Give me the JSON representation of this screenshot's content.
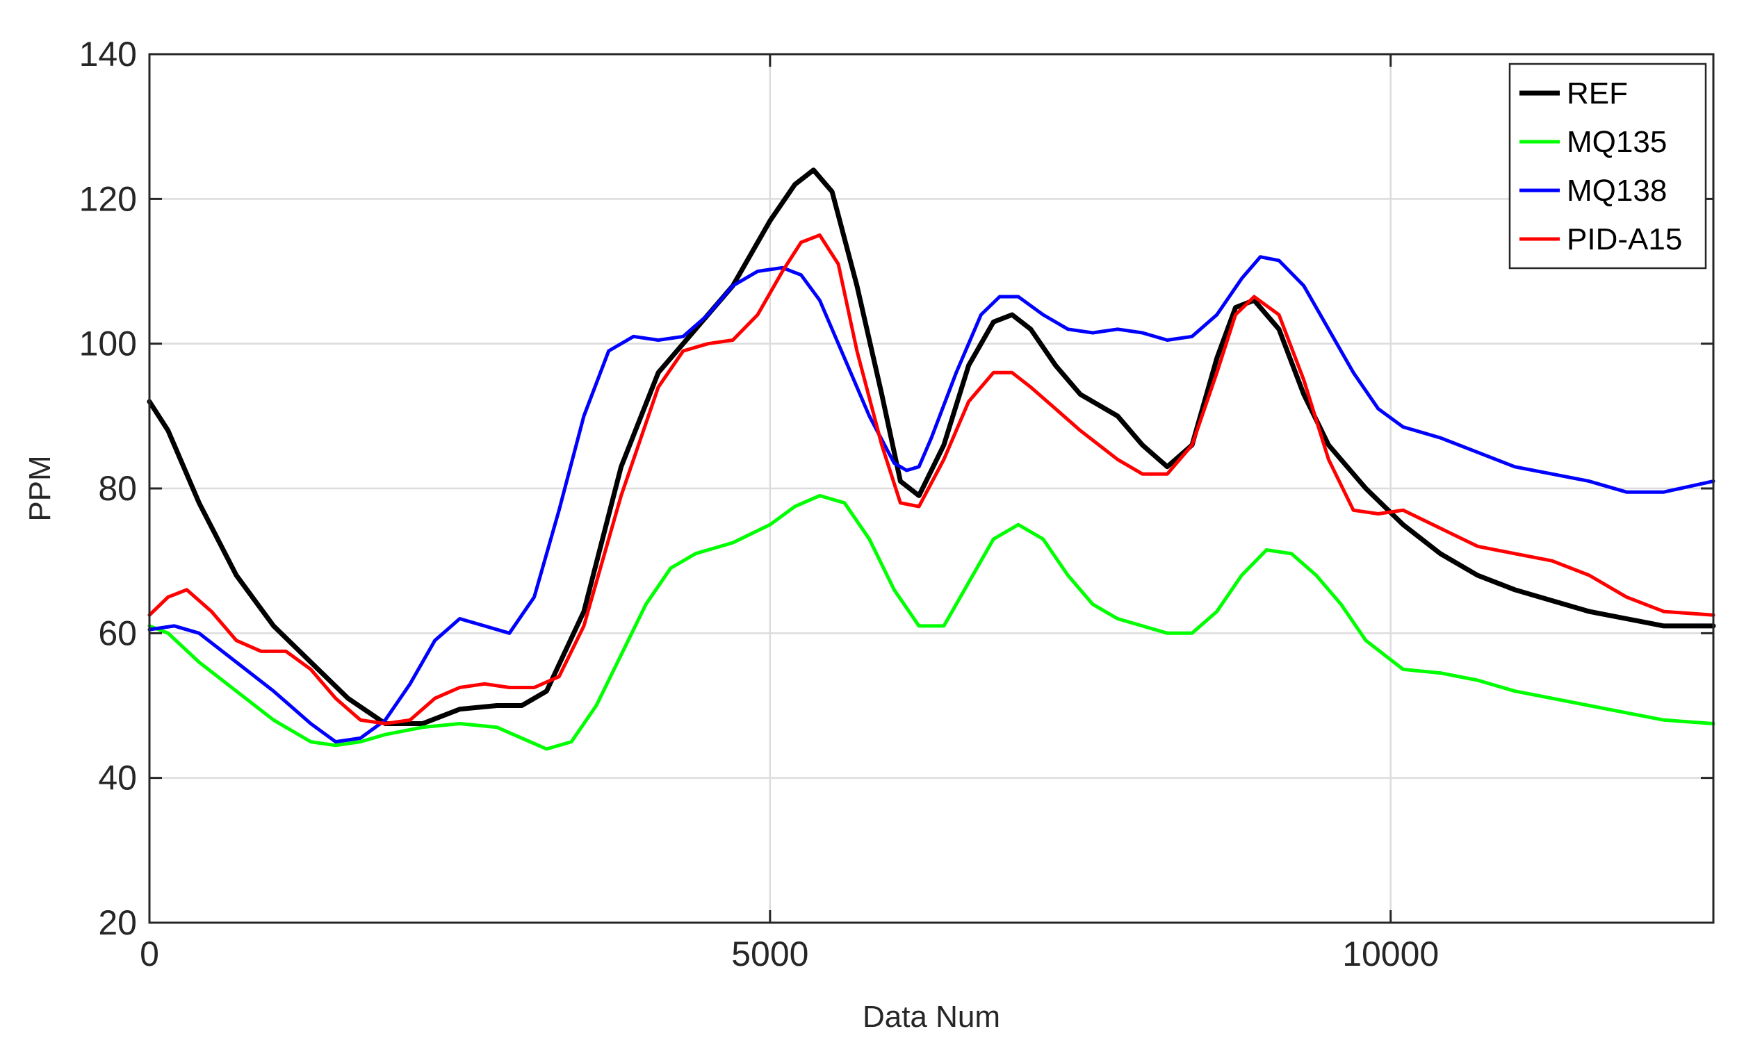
{
  "chart_data": {
    "type": "line",
    "title": "",
    "xlabel": "Data Num",
    "ylabel": "PPM",
    "xlim": [
      0,
      12600
    ],
    "ylim": [
      20,
      140
    ],
    "xticks": [
      0,
      5000,
      10000
    ],
    "yticks": [
      20,
      40,
      60,
      80,
      100,
      120,
      140
    ],
    "xtick_labels": [
      "0",
      "5000",
      "10000"
    ],
    "ytick_labels": [
      "20",
      "40",
      "60",
      "80",
      "100",
      "120",
      "140"
    ],
    "grid": true,
    "legend_position": "top-right",
    "series": [
      {
        "name": "REF",
        "color": "#000000",
        "x": [
          0,
          150,
          400,
          700,
          1000,
          1300,
          1600,
          1900,
          2200,
          2500,
          2800,
          3000,
          3200,
          3500,
          3800,
          4100,
          4400,
          4700,
          5000,
          5200,
          5350,
          5500,
          5700,
          5900,
          6050,
          6200,
          6400,
          6600,
          6800,
          6950,
          7100,
          7300,
          7500,
          7800,
          8000,
          8200,
          8400,
          8600,
          8750,
          8900,
          9100,
          9300,
          9500,
          9800,
          10100,
          10400,
          10700,
          11000,
          11300,
          11600,
          11900,
          12200,
          12600
        ],
        "y": [
          92,
          88,
          78,
          68,
          61,
          56,
          51,
          47.5,
          47.5,
          49.5,
          50,
          50,
          52,
          63,
          83,
          96,
          102,
          108,
          117,
          122,
          124,
          121,
          108,
          93,
          81,
          79,
          86,
          97,
          103,
          104,
          102,
          97,
          93,
          90,
          86,
          83,
          86,
          98,
          105,
          106,
          102,
          93,
          86,
          80,
          75,
          71,
          68,
          66,
          64.5,
          63,
          62,
          61,
          61
        ]
      },
      {
        "name": "MQ135",
        "color": "#00ff00",
        "x": [
          0,
          150,
          400,
          700,
          1000,
          1300,
          1500,
          1700,
          1900,
          2200,
          2500,
          2800,
          3000,
          3200,
          3400,
          3600,
          3800,
          4000,
          4200,
          4400,
          4700,
          5000,
          5200,
          5400,
          5600,
          5800,
          6000,
          6200,
          6400,
          6600,
          6800,
          7000,
          7200,
          7400,
          7600,
          7800,
          8000,
          8200,
          8400,
          8600,
          8800,
          9000,
          9200,
          9400,
          9600,
          9800,
          10100,
          10400,
          10700,
          11000,
          11300,
          11600,
          11900,
          12200,
          12600
        ],
        "y": [
          61,
          60,
          56,
          52,
          48,
          45,
          44.5,
          45,
          46,
          47,
          47.5,
          47,
          45.5,
          44,
          45,
          50,
          57,
          64,
          69,
          71,
          72.5,
          75,
          77.5,
          79,
          78,
          73,
          66,
          61,
          61,
          67,
          73,
          75,
          73,
          68,
          64,
          62,
          61,
          60,
          60,
          63,
          68,
          71.5,
          71,
          68,
          64,
          59,
          55,
          54.5,
          53.5,
          52,
          51,
          50,
          49,
          48,
          47.5
        ]
      },
      {
        "name": "MQ138",
        "color": "#0000ff",
        "x": [
          0,
          200,
          400,
          700,
          1000,
          1300,
          1500,
          1700,
          1900,
          2100,
          2300,
          2500,
          2700,
          2900,
          3100,
          3300,
          3500,
          3700,
          3900,
          4100,
          4300,
          4500,
          4700,
          4900,
          5100,
          5250,
          5400,
          5600,
          5800,
          6000,
          6100,
          6200,
          6300,
          6500,
          6700,
          6850,
          7000,
          7200,
          7400,
          7600,
          7800,
          8000,
          8200,
          8400,
          8600,
          8800,
          8950,
          9100,
          9300,
          9500,
          9700,
          9900,
          10100,
          10400,
          10700,
          11000,
          11300,
          11600,
          11900,
          12200,
          12600
        ],
        "y": [
          60.5,
          61,
          60,
          56,
          52,
          47.5,
          45,
          45.5,
          48,
          53,
          59,
          62,
          61,
          60,
          65,
          77,
          90,
          99,
          101,
          100.5,
          101,
          104,
          108,
          110,
          110.5,
          109.5,
          106,
          98,
          90,
          83.5,
          82.5,
          83,
          87,
          96,
          104,
          106.5,
          106.5,
          104,
          102,
          101.5,
          102,
          101.5,
          100.5,
          101,
          104,
          109,
          112,
          111.5,
          108,
          102,
          96,
          91,
          88.5,
          87,
          85,
          83,
          82,
          81,
          79.5,
          79.5,
          81
        ]
      },
      {
        "name": "PID-A15",
        "color": "#ff0000",
        "x": [
          0,
          150,
          300,
          500,
          700,
          900,
          1100,
          1300,
          1500,
          1700,
          1900,
          2100,
          2300,
          2500,
          2700,
          2900,
          3100,
          3300,
          3500,
          3800,
          4100,
          4300,
          4500,
          4700,
          4900,
          5100,
          5250,
          5400,
          5550,
          5700,
          5900,
          6050,
          6200,
          6400,
          6600,
          6800,
          6950,
          7100,
          7300,
          7500,
          7800,
          8000,
          8200,
          8400,
          8600,
          8750,
          8900,
          9100,
          9300,
          9500,
          9700,
          9900,
          10100,
          10400,
          10700,
          11000,
          11300,
          11600,
          11900,
          12200,
          12600
        ],
        "y": [
          62.5,
          65,
          66,
          63,
          59,
          57.5,
          57.5,
          55,
          51,
          48,
          47.5,
          48,
          51,
          52.5,
          53,
          52.5,
          52.5,
          54,
          61,
          79,
          94,
          99,
          100,
          100.5,
          104,
          110,
          114,
          115,
          111,
          99,
          86,
          78,
          77.5,
          84,
          92,
          96,
          96,
          94,
          91,
          88,
          84,
          82,
          82,
          86,
          96,
          104,
          106.5,
          104,
          95,
          84,
          77,
          76.5,
          77,
          74.5,
          72,
          71,
          70,
          68,
          65,
          63,
          62.5
        ]
      }
    ]
  }
}
